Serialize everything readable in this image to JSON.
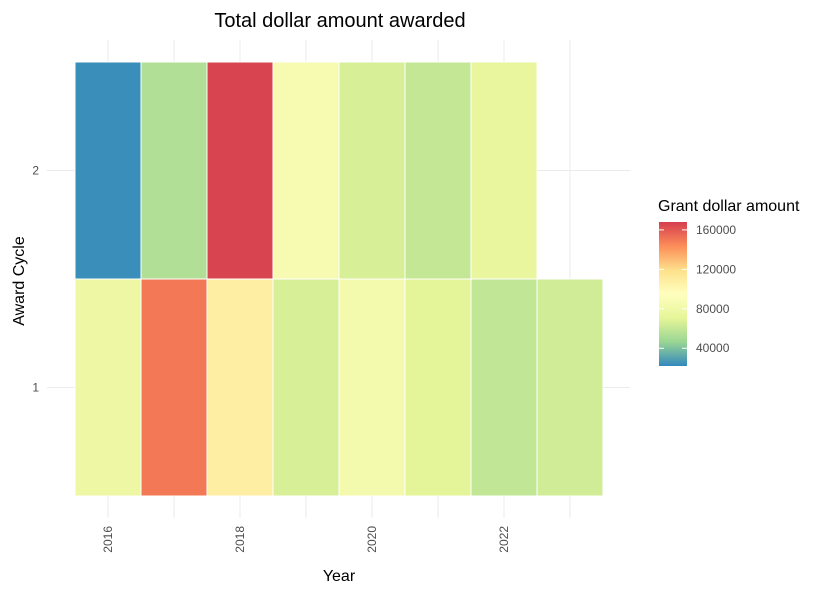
{
  "chart_data": {
    "type": "heatmap",
    "title": "Total dollar amount awarded",
    "xlabel": "Year",
    "ylabel": "Award Cycle",
    "x_ticks": [
      2016,
      2018,
      2020,
      2022
    ],
    "y_ticks": [
      1,
      2
    ],
    "xlim": [
      2015.5,
      2023.5
    ],
    "ylim": [
      0.5,
      2.5
    ],
    "grid": true,
    "legend": {
      "title": "Grant dollar amount",
      "placement": "right",
      "range": [
        22000,
        168000
      ],
      "breaks": [
        40000,
        80000,
        120000,
        160000
      ],
      "labels": [
        "40000",
        "80000",
        "120000",
        "160000"
      ]
    },
    "palette": [
      "#3288bd",
      "#99d594",
      "#e6f598",
      "#ffffbf",
      "#fee08b",
      "#fc8d59",
      "#d53e4f"
    ],
    "cells": [
      {
        "year": 2016,
        "cycle": 2,
        "value": 24000
      },
      {
        "year": 2017,
        "cycle": 2,
        "value": 54000
      },
      {
        "year": 2018,
        "cycle": 2,
        "value": 166000
      },
      {
        "year": 2019,
        "cycle": 2,
        "value": 86000
      },
      {
        "year": 2020,
        "cycle": 2,
        "value": 66000
      },
      {
        "year": 2021,
        "cycle": 2,
        "value": 60000
      },
      {
        "year": 2022,
        "cycle": 2,
        "value": 74000
      },
      {
        "year": 2016,
        "cycle": 1,
        "value": 78000
      },
      {
        "year": 2017,
        "cycle": 1,
        "value": 150000
      },
      {
        "year": 2018,
        "cycle": 1,
        "value": 108000
      },
      {
        "year": 2019,
        "cycle": 1,
        "value": 66000
      },
      {
        "year": 2020,
        "cycle": 1,
        "value": 84000
      },
      {
        "year": 2021,
        "cycle": 1,
        "value": 70000
      },
      {
        "year": 2022,
        "cycle": 1,
        "value": 59000
      },
      {
        "year": 2023,
        "cycle": 1,
        "value": 64000
      }
    ]
  }
}
